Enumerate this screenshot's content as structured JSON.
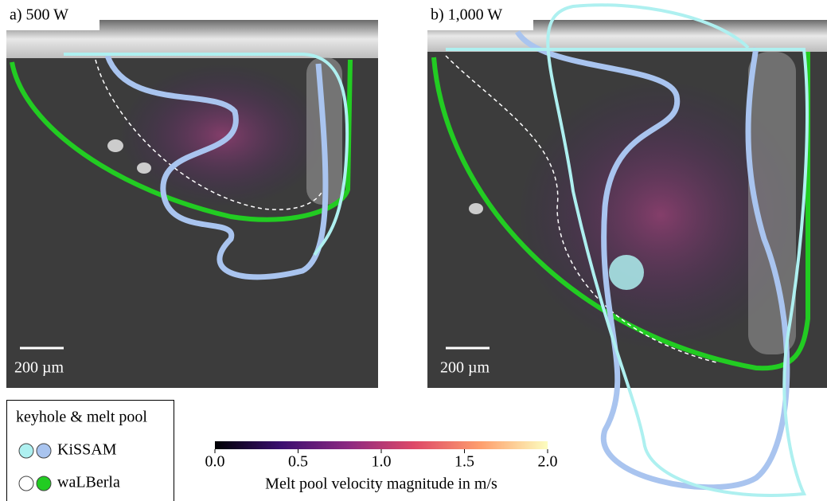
{
  "panels": [
    {
      "label": "a) 500 W",
      "scale_bar": "200 µm"
    },
    {
      "label": "b) 1,000 W",
      "scale_bar": "200 µm"
    }
  ],
  "legend": {
    "title": "keyhole & melt pool",
    "entries": [
      {
        "name": "KiSSAM",
        "colors": [
          "#aef0f0",
          "#a9c4ef"
        ]
      },
      {
        "name": "waLBerla",
        "colors": [
          "#ffffff",
          "#22cc22"
        ]
      }
    ]
  },
  "colorbar": {
    "label": "Melt pool velocity magnitude in m/s",
    "range": [
      0,
      2
    ],
    "ticks": [
      {
        "value": 0,
        "label": "0.0"
      },
      {
        "value": 0.5,
        "label": "0.5"
      },
      {
        "value": 1,
        "label": "1.0"
      },
      {
        "value": 1.5,
        "label": "1.5"
      },
      {
        "value": 2,
        "label": "2.0"
      }
    ]
  }
}
